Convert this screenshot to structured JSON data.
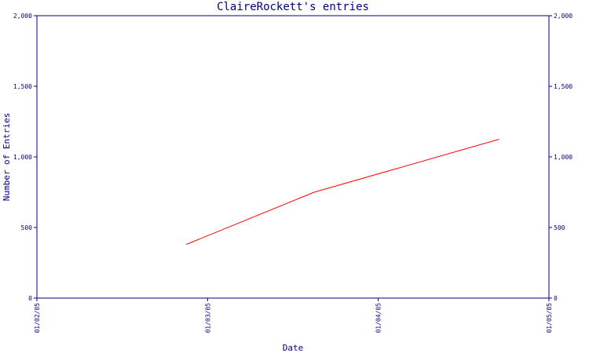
{
  "chart_data": {
    "type": "line",
    "title": "ClaireRockett's entries",
    "xlabel": "Date",
    "ylabel": "Number of Entries",
    "x_ticks": [
      "01/02/05",
      "01/03/05",
      "01/04/05",
      "01/05/05"
    ],
    "y_ticks": [
      "0",
      "500",
      "1,000",
      "1,500",
      "2,000"
    ],
    "ylim": [
      0,
      2000
    ],
    "xlim": [
      "2005-01-02",
      "2005-01-05"
    ],
    "grid": false,
    "series": [
      {
        "points": [
          {
            "x": "2005-01-02 21:00",
            "y": 380
          },
          {
            "x": "2005-01-03 15:00",
            "y": 750
          },
          {
            "x": "2005-01-04 17:00",
            "y": 1125
          }
        ]
      }
    ],
    "colors": {
      "axis": "#000080",
      "line": "#ff0000",
      "text": "#000080"
    }
  }
}
